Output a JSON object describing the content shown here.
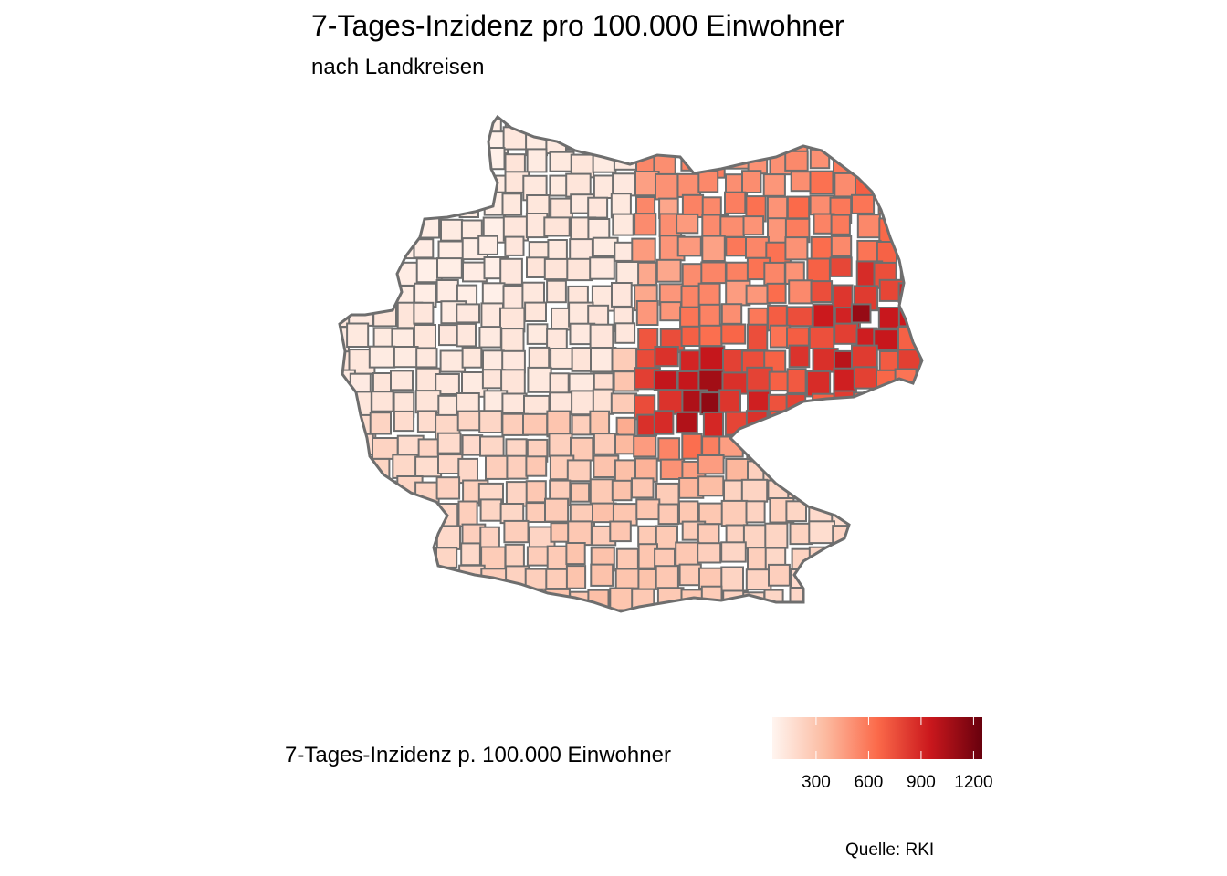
{
  "title": "7-Tages-Inzidenz pro 100.000 Einwohner",
  "subtitle": "nach Landkreisen",
  "caption": "Quelle: RKI",
  "legend": {
    "title": "7-Tages-Inzidenz p. 100.000 Einwohner",
    "ticks": [
      300,
      600,
      900,
      1200
    ],
    "tick_labels": [
      "300",
      "600",
      "900",
      "1200"
    ],
    "range": [
      50,
      1250
    ],
    "colors": [
      "#fff5f0",
      "#fcbba1",
      "#fb6a4a",
      "#cb181d",
      "#67000d"
    ]
  },
  "map": {
    "region": "Deutschland",
    "unit": "Landkreise",
    "border_color": "#6e6e6e",
    "pattern": "niedrige Inzidenz im Westen und Norden, hohe Inzidenz im Osten (Sachsen, Thüringen), Maximum um 1200"
  }
}
